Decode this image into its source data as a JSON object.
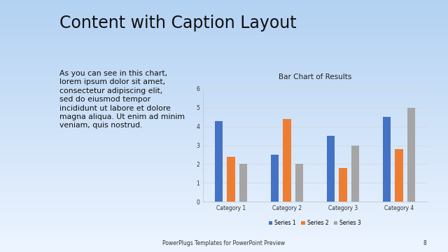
{
  "slide": {
    "title": "Content with Caption Layout",
    "caption": "As you can see in this chart, lorem ipsum dolor sit amet, consectetur adipiscing elit, sed do eiusmod tempor incididunt ut labore et dolore magna aliqua. Ut enim ad minim veniam, quis nostrud.",
    "footer": "PowerPlugs Templates for PowerPoint Preview",
    "page": 8
  },
  "chart_data": {
    "type": "bar",
    "title": "Bar Chart of Results",
    "categories": [
      "Category 1",
      "Category 2",
      "Category 3",
      "Category 4"
    ],
    "series": [
      {
        "name": "Series 1",
        "color": "#4472c4",
        "values": [
          4.3,
          2.5,
          3.5,
          4.5
        ]
      },
      {
        "name": "Series 2",
        "color": "#ed7d31",
        "values": [
          2.4,
          4.4,
          1.8,
          2.8
        ]
      },
      {
        "name": "Series 3",
        "color": "#a5a5a5",
        "values": [
          2,
          2,
          3,
          5
        ]
      }
    ],
    "ylim": [
      0,
      6
    ],
    "yticks": [
      0,
      1,
      2,
      3,
      4,
      5,
      6
    ],
    "grid": true,
    "legend": "bottom"
  }
}
